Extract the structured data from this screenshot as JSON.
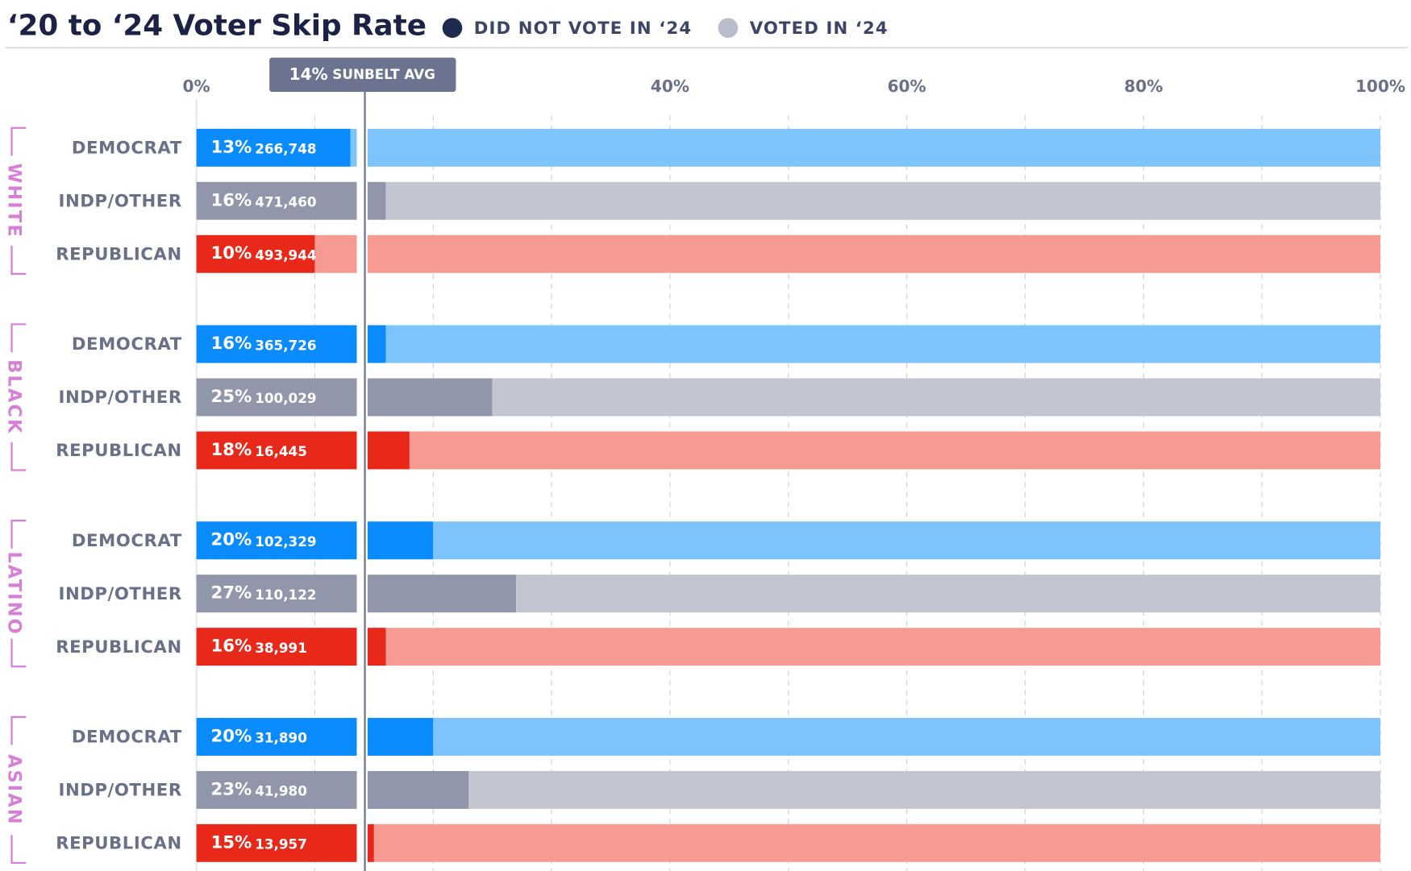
{
  "chart_data": {
    "type": "bar",
    "orientation": "horizontal",
    "title": "‘20 to ‘24 Voter Skip Rate",
    "categories": [
      "DEMOCRAT",
      "INDP/OTHER",
      "REPUBLICAN",
      "DEMOCRAT",
      "INDP/OTHER",
      "REPUBLICAN",
      "DEMOCRAT",
      "INDP/OTHER",
      "REPUBLICAN",
      "DEMOCRAT",
      "INDP/OTHER",
      "REPUBLICAN"
    ],
    "groups": [
      {
        "name": "WHITE",
        "size": 3
      },
      {
        "name": "BLACK",
        "size": 3
      },
      {
        "name": "LATINO",
        "size": 3
      },
      {
        "name": "ASIAN",
        "size": 3
      }
    ],
    "series": [
      {
        "name": "DID NOT VOTE IN ‘24",
        "color": "#1f2a4f",
        "colors": [
          "#0a8cff",
          "#9296aa",
          "#e8291a",
          "#0a8cff",
          "#9296aa",
          "#e8291a",
          "#0a8cff",
          "#9296aa",
          "#e8291a",
          "#0a8cff",
          "#9296aa",
          "#e8291a"
        ],
        "values": [
          13,
          16,
          10,
          16,
          25,
          18,
          20,
          27,
          16,
          20,
          23,
          15
        ],
        "value_labels": [
          "13%",
          "16%",
          "10%",
          "16%",
          "25%",
          "18%",
          "20%",
          "27%",
          "16%",
          "20%",
          "23%",
          "15%"
        ],
        "counts": [
          266748,
          471460,
          493944,
          365726,
          100029,
          16445,
          102329,
          110122,
          38991,
          31890,
          41980,
          13957
        ],
        "count_labels": [
          "266,748",
          "471,460",
          "493,944",
          "365,726",
          "100,029",
          "16,445",
          "102,329",
          "110,122",
          "38,991",
          "31,890",
          "41,980",
          "13,957"
        ]
      },
      {
        "name": "VOTED IN ‘24",
        "color": "#b8bccb",
        "colors": [
          "#7dc4fd",
          "#c3c5d1",
          "#f79a91",
          "#7dc4fd",
          "#c3c5d1",
          "#f79a91",
          "#7dc4fd",
          "#c3c5d1",
          "#f79a91",
          "#7dc4fd",
          "#c3c5d1",
          "#f79a91"
        ],
        "values": [
          87,
          84,
          90,
          84,
          75,
          82,
          80,
          73,
          84,
          80,
          77,
          85
        ]
      }
    ],
    "xlim": [
      0,
      100
    ],
    "xticks": [
      {
        "value": 0,
        "label": "0%"
      },
      {
        "value": 10,
        "label": null
      },
      {
        "value": 20,
        "label": null
      },
      {
        "value": 30,
        "label": null
      },
      {
        "value": 40,
        "label": "40%"
      },
      {
        "value": 50,
        "label": null
      },
      {
        "value": 60,
        "label": "60%"
      },
      {
        "value": 70,
        "label": null
      },
      {
        "value": 80,
        "label": "80%"
      },
      {
        "value": 90,
        "label": null
      },
      {
        "value": 100,
        "label": "100%"
      }
    ],
    "grid": true,
    "annotation": {
      "value": 14,
      "label": "14%",
      "text": "SUNBELT AVG"
    }
  }
}
